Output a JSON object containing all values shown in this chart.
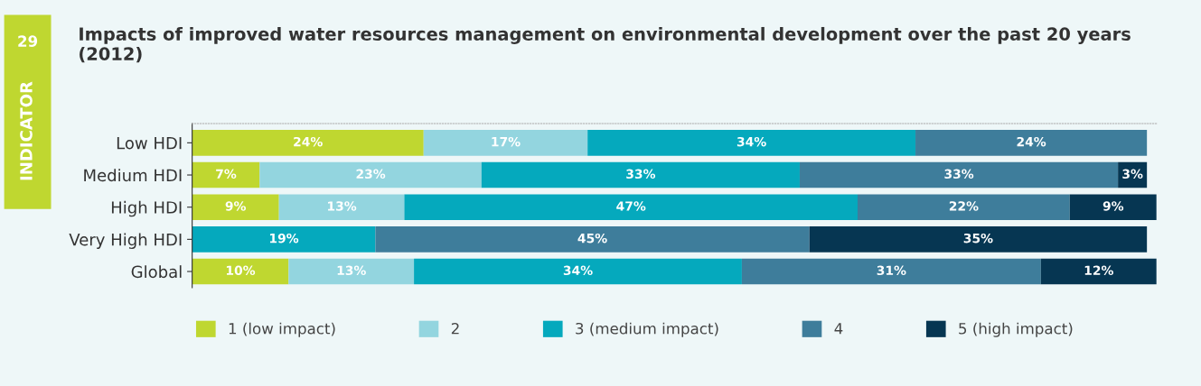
{
  "chart_data": {
    "type": "bar",
    "orientation": "horizontal",
    "stacked": true,
    "title": "Impacts of improved water resources management on environmental development over the past 20 years (2012)",
    "annotations": [
      "29",
      "INDICATOR"
    ],
    "categories": [
      "Low HDI",
      "Medium HDI",
      "High HDI",
      "Very High HDI",
      "Global"
    ],
    "series": [
      {
        "name": "1 (low impact)",
        "color": "#bfd730",
        "values": [
          24,
          7,
          9,
          null,
          10
        ],
        "value_labels": [
          "24%",
          "7%",
          "9%",
          null,
          "10%"
        ]
      },
      {
        "name": "2",
        "color": "#93d5df",
        "values": [
          17,
          23,
          13,
          null,
          13
        ],
        "value_labels": [
          "17%",
          "23%",
          "13%",
          null,
          "13%"
        ]
      },
      {
        "name": "3 (medium impact)",
        "color": "#05a9bd",
        "values": [
          34,
          33,
          47,
          19,
          34
        ],
        "value_labels": [
          "34%",
          "33%",
          "47%",
          "19%",
          "34%"
        ]
      },
      {
        "name": "4",
        "color": "#3e7d9b",
        "values": [
          24,
          33,
          22,
          45,
          31
        ],
        "value_labels": [
          "24%",
          "33%",
          "22%",
          "45%",
          "31%"
        ]
      },
      {
        "name": "5 (high impact)",
        "color": "#063652",
        "values": [
          null,
          3,
          9,
          35,
          12
        ],
        "value_labels": [
          null,
          "3%",
          "9%",
          "35%",
          "12%"
        ]
      }
    ],
    "legend": "bottom",
    "tick_labels": "y"
  }
}
